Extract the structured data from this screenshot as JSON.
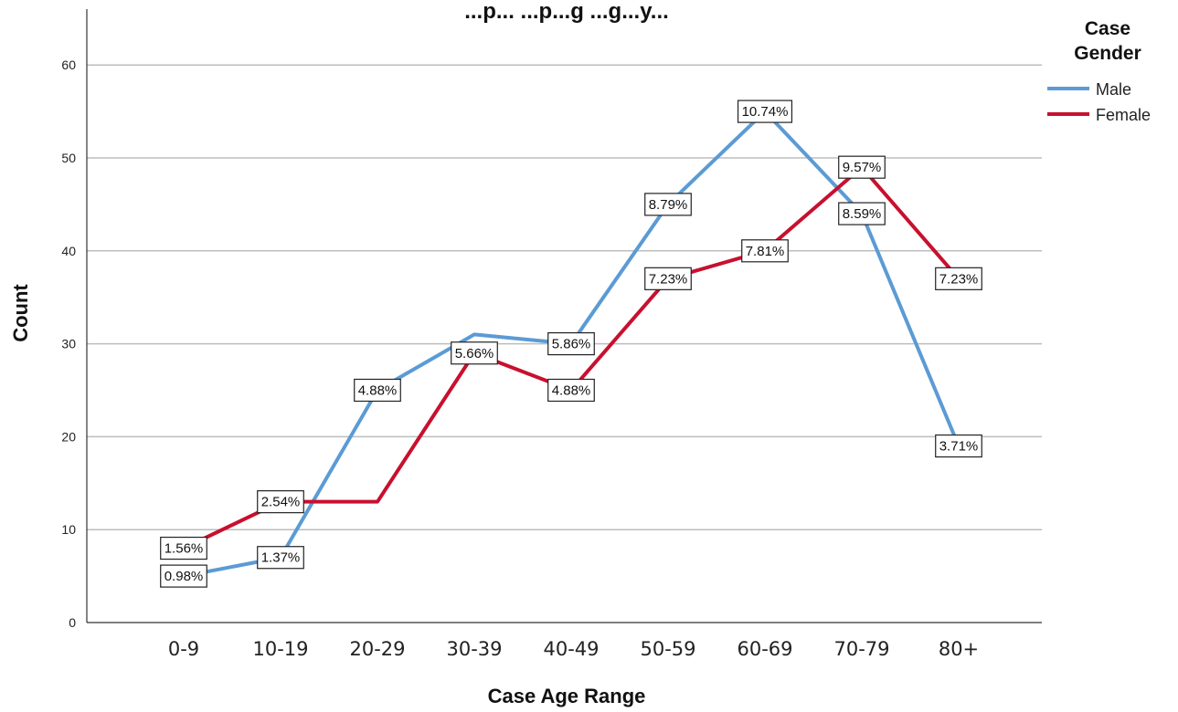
{
  "chart_data": {
    "type": "line",
    "title": "...p... ...p...g ...g...y...",
    "xlabel": "Case Age Range",
    "ylabel": "Count",
    "ylim": [
      0,
      65
    ],
    "yticks": [
      0,
      10,
      20,
      30,
      40,
      50,
      60
    ],
    "grid": true,
    "legend_position": "top-right",
    "legend_title": [
      "Case",
      "Gender"
    ],
    "categories": [
      "0-9",
      "10-19",
      "20-29",
      "30-39",
      "40-49",
      "50-59",
      "60-69",
      "70-79",
      "80+"
    ],
    "series": [
      {
        "name": "Male",
        "color": "#5b9bd5",
        "values": [
          5,
          7,
          25,
          31,
          30,
          45,
          55,
          44,
          19
        ],
        "labels": [
          "0.98%",
          "1.37%",
          "4.88%",
          "",
          "5.86%",
          "8.79%",
          "10.74%",
          "8.59%",
          "3.71%"
        ]
      },
      {
        "name": "Female",
        "color": "#c8102e",
        "values": [
          8,
          13,
          13,
          29,
          25,
          37,
          40,
          49,
          37
        ],
        "labels": [
          "1.56%",
          "2.54%",
          "",
          "5.66%",
          "4.88%",
          "7.23%",
          "7.81%",
          "9.57%",
          "7.23%"
        ]
      }
    ]
  }
}
